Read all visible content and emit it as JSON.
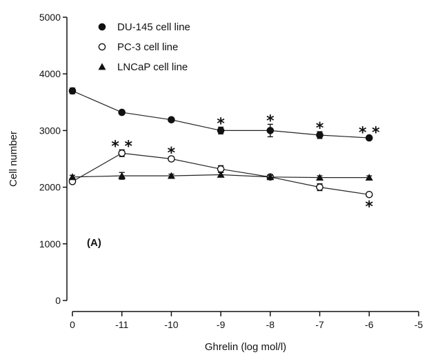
{
  "chart_data": {
    "type": "line",
    "x": [
      "0",
      "-11",
      "-10",
      "-9",
      "-8",
      "-7",
      "-6",
      "-5"
    ],
    "series": [
      {
        "name": "DU-145 cell line",
        "marker": "filled-circle",
        "values": [
          3700,
          3320,
          3190,
          3000,
          3000,
          2920,
          2870,
          null
        ],
        "errors": [
          50,
          30,
          30,
          60,
          110,
          60,
          30,
          null
        ],
        "stars_above": [
          "",
          "",
          "",
          "*",
          "*",
          "*",
          "* *",
          ""
        ],
        "stars_below": [
          "",
          "",
          "",
          "",
          "",
          "",
          "",
          ""
        ]
      },
      {
        "name": "PC-3 cell line",
        "marker": "open-circle",
        "values": [
          2100,
          2600,
          2500,
          2320,
          2180,
          2000,
          1870,
          null
        ],
        "errors": [
          40,
          60,
          40,
          60,
          40,
          60,
          30,
          null
        ],
        "stars_above": [
          "",
          "* *",
          "*",
          "",
          "",
          "",
          "",
          ""
        ],
        "stars_below": [
          "",
          "",
          "",
          "",
          "",
          "",
          "*",
          ""
        ]
      },
      {
        "name": "LNCaP cell line",
        "marker": "filled-triangle",
        "values": [
          2180,
          2200,
          2200,
          2220,
          2180,
          2170,
          2170,
          null
        ],
        "errors": [
          30,
          60,
          30,
          40,
          30,
          30,
          30,
          null
        ],
        "stars_above": [
          "",
          "",
          "",
          "",
          "",
          "",
          "",
          ""
        ],
        "stars_below": [
          "",
          "",
          "",
          "",
          "",
          "",
          "",
          ""
        ]
      }
    ],
    "ylabel": "Cell number",
    "xlabel": "Ghrelin (log mol/l)",
    "ylim": [
      0,
      5000
    ],
    "yticks": [
      "0",
      "1000",
      "2000",
      "3000",
      "4000",
      "5000"
    ],
    "xticks": [
      "0",
      "-11",
      "-10",
      "-9",
      "-8",
      "-7",
      "-6",
      "-5"
    ],
    "panel_label": "(A)",
    "legend_position": "top-left",
    "grid": false
  }
}
